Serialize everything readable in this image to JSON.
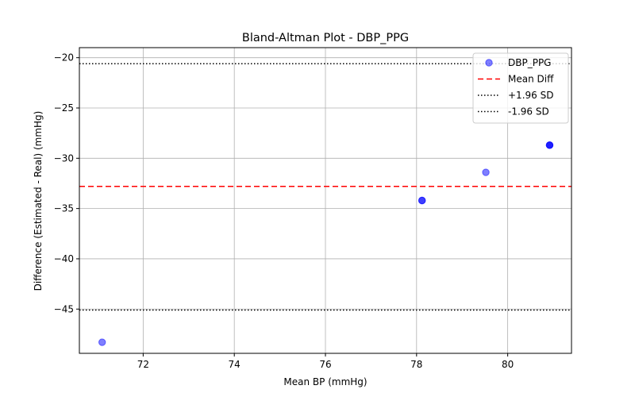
{
  "chart_data": {
    "type": "scatter",
    "title": "Bland-Altman Plot - DBP_PPG",
    "xlabel": "Mean BP (mmHg)",
    "ylabel": "Difference (Estimated - Real) (mmHg)",
    "xlim": [
      70.6,
      81.4
    ],
    "ylim": [
      -49.4,
      -19.0
    ],
    "xticks": [
      72,
      74,
      76,
      78,
      80
    ],
    "yticks": [
      -20,
      -25,
      -30,
      -35,
      -40,
      -45
    ],
    "grid": true,
    "legend_position": "top-right",
    "series": [
      {
        "name": "DBP_PPG",
        "color": "#0000ff",
        "opacity": 0.5,
        "points": [
          {
            "x": 71.1,
            "y": -48.3
          },
          {
            "x": 78.12,
            "y": -34.2
          },
          {
            "x": 78.12,
            "y": -34.2
          },
          {
            "x": 79.52,
            "y": -31.4
          },
          {
            "x": 80.92,
            "y": -28.7
          },
          {
            "x": 80.92,
            "y": -28.7
          },
          {
            "x": 80.92,
            "y": -28.7
          }
        ]
      }
    ],
    "reference_lines": [
      {
        "name": "Mean Diff",
        "y": -32.8,
        "color": "#ff0000",
        "style": "dashed"
      },
      {
        "name": "+1.96 SD",
        "y": -20.6,
        "color": "#000000",
        "style": "dotted"
      },
      {
        "name": "-1.96 SD",
        "y": -45.1,
        "color": "#000000",
        "style": "dotted"
      }
    ]
  }
}
